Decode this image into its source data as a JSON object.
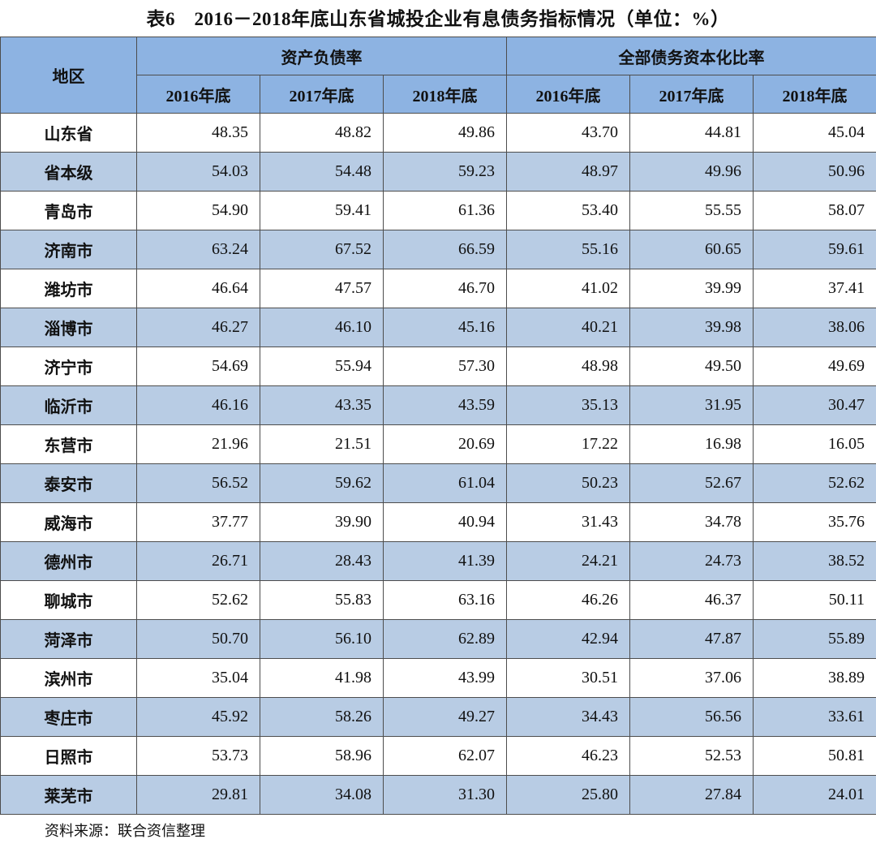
{
  "title": "表6　2016－2018年底山东省城投企业有息债务指标情况（单位：%）",
  "table": {
    "region_header": "地区",
    "group_headers": [
      "资产负债率",
      "全部债务资本化比率"
    ],
    "year_headers": [
      "2016年底",
      "2017年底",
      "2018年底",
      "2016年底",
      "2017年底",
      "2018年底"
    ],
    "rows": [
      {
        "region": "山东省",
        "values": [
          "48.35",
          "48.82",
          "49.86",
          "43.70",
          "44.81",
          "45.04"
        ]
      },
      {
        "region": "省本级",
        "values": [
          "54.03",
          "54.48",
          "59.23",
          "48.97",
          "49.96",
          "50.96"
        ]
      },
      {
        "region": "青岛市",
        "values": [
          "54.90",
          "59.41",
          "61.36",
          "53.40",
          "55.55",
          "58.07"
        ]
      },
      {
        "region": "济南市",
        "values": [
          "63.24",
          "67.52",
          "66.59",
          "55.16",
          "60.65",
          "59.61"
        ]
      },
      {
        "region": "潍坊市",
        "values": [
          "46.64",
          "47.57",
          "46.70",
          "41.02",
          "39.99",
          "37.41"
        ]
      },
      {
        "region": "淄博市",
        "values": [
          "46.27",
          "46.10",
          "45.16",
          "40.21",
          "39.98",
          "38.06"
        ]
      },
      {
        "region": "济宁市",
        "values": [
          "54.69",
          "55.94",
          "57.30",
          "48.98",
          "49.50",
          "49.69"
        ]
      },
      {
        "region": "临沂市",
        "values": [
          "46.16",
          "43.35",
          "43.59",
          "35.13",
          "31.95",
          "30.47"
        ]
      },
      {
        "region": "东营市",
        "values": [
          "21.96",
          "21.51",
          "20.69",
          "17.22",
          "16.98",
          "16.05"
        ]
      },
      {
        "region": "泰安市",
        "values": [
          "56.52",
          "59.62",
          "61.04",
          "50.23",
          "52.67",
          "52.62"
        ]
      },
      {
        "region": "威海市",
        "values": [
          "37.77",
          "39.90",
          "40.94",
          "31.43",
          "34.78",
          "35.76"
        ]
      },
      {
        "region": "德州市",
        "values": [
          "26.71",
          "28.43",
          "41.39",
          "24.21",
          "24.73",
          "38.52"
        ]
      },
      {
        "region": "聊城市",
        "values": [
          "52.62",
          "55.83",
          "63.16",
          "46.26",
          "46.37",
          "50.11"
        ]
      },
      {
        "region": "菏泽市",
        "values": [
          "50.70",
          "56.10",
          "62.89",
          "42.94",
          "47.87",
          "55.89"
        ]
      },
      {
        "region": "滨州市",
        "values": [
          "35.04",
          "41.98",
          "43.99",
          "30.51",
          "37.06",
          "38.89"
        ]
      },
      {
        "region": "枣庄市",
        "values": [
          "45.92",
          "58.26",
          "49.27",
          "34.43",
          "56.56",
          "33.61"
        ]
      },
      {
        "region": "日照市",
        "values": [
          "53.73",
          "58.96",
          "62.07",
          "46.23",
          "52.53",
          "50.81"
        ]
      },
      {
        "region": "莱芜市",
        "values": [
          "29.81",
          "34.08",
          "31.30",
          "25.80",
          "27.84",
          "24.01"
        ]
      }
    ]
  },
  "source": "资料来源：联合资信整理",
  "colors": {
    "header_bg": "#8db3e2",
    "alt_row_bg": "#b8cce4"
  }
}
